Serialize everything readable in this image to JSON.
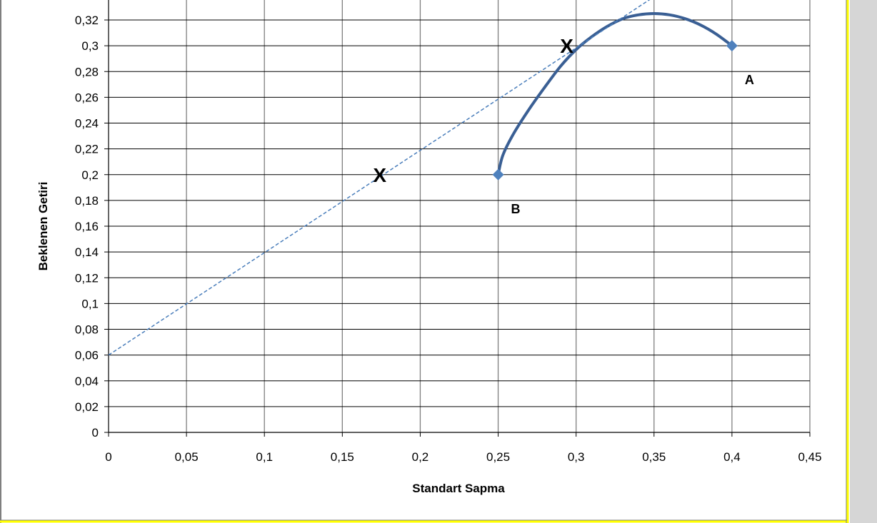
{
  "chart_data": {
    "type": "line",
    "title": "",
    "xlabel": "Standart Sapma",
    "ylabel": "Beklenen Getiri",
    "xlim": [
      0,
      0.45
    ],
    "ylim": [
      0,
      0.32
    ],
    "x_ticks": [
      "0",
      "0,05",
      "0,1",
      "0,15",
      "0,2",
      "0,25",
      "0,3",
      "0,35",
      "0,4",
      "0,45"
    ],
    "y_ticks": [
      "0",
      "0,02",
      "0,04",
      "0,06",
      "0,08",
      "0,1",
      "0,12",
      "0,14",
      "0,16",
      "0,18",
      "0,2",
      "0,22",
      "0,24",
      "0,26",
      "0,28",
      "0,3",
      "0,32"
    ],
    "grid": true,
    "series": [
      {
        "style": "solid-curve",
        "color": "#3a5f94",
        "x": [
          0.25,
          0.253,
          0.26,
          0.27,
          0.28,
          0.29,
          0.3,
          0.31,
          0.32,
          0.33,
          0.34,
          0.35,
          0.36,
          0.37,
          0.38,
          0.39,
          0.4
        ],
        "y": [
          0.2,
          0.215,
          0.232,
          0.251,
          0.268,
          0.284,
          0.297,
          0.307,
          0.315,
          0.321,
          0.324,
          0.325,
          0.324,
          0.321,
          0.316,
          0.309,
          0.3
        ]
      },
      {
        "style": "dashed-line",
        "color": "#4a7ebb",
        "x": [
          0,
          0.35
        ],
        "y": [
          0.06,
          0.338
        ]
      }
    ],
    "points": [
      {
        "x": 0.4,
        "y": 0.3,
        "label": "A",
        "color": "#4f81bd"
      },
      {
        "x": 0.25,
        "y": 0.2,
        "label": "B",
        "color": "#4f81bd"
      }
    ],
    "annotations": [
      {
        "text": "X",
        "x": 0.174,
        "y": 0.2
      },
      {
        "text": "X",
        "x": 0.294,
        "y": 0.3
      }
    ],
    "frame_colors": {
      "border": "#7f7f7f",
      "accent": "#ffff00",
      "grid": "#7f7f7f"
    }
  }
}
